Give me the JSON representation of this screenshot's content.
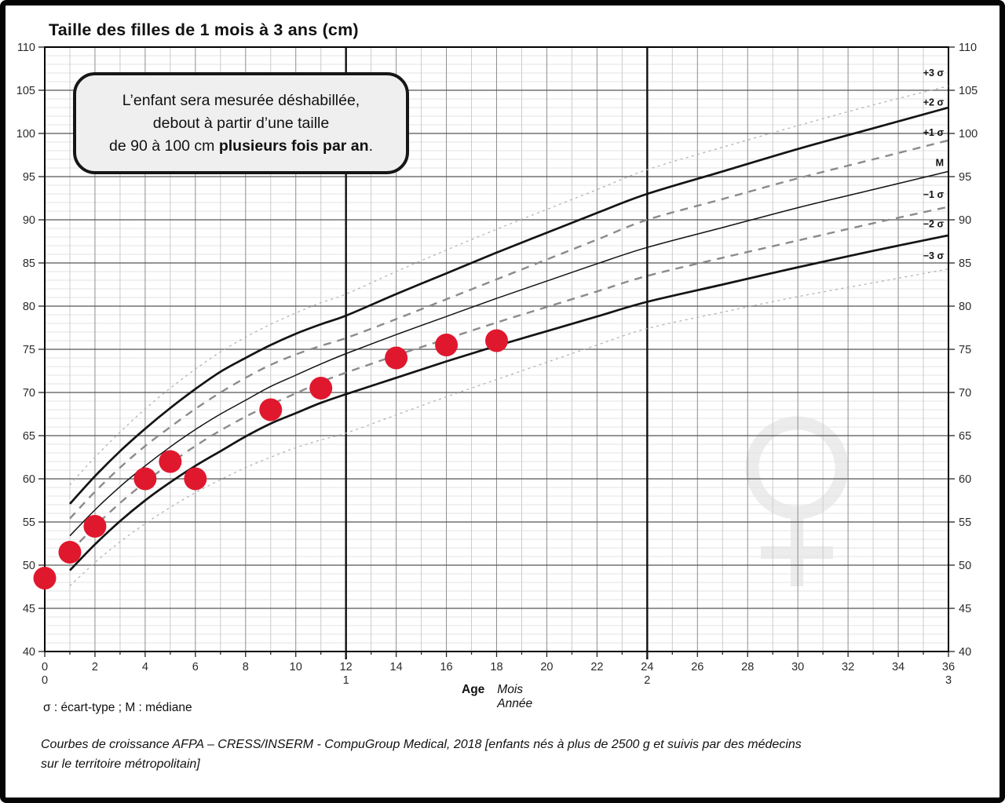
{
  "page": {
    "title": "Taille des filles de 1 mois à 3 ans (cm)",
    "callout": {
      "line1": "L’enfant sera mesurée déshabillée,",
      "line2": "debout à partir d’une taille",
      "line3_normal": "de 90 à 100 cm ",
      "line3_bold": "plusieurs fois par an",
      "line3_end": "."
    },
    "legend_note": "σ : écart-type ; M : médiane",
    "age_label": "Age",
    "age_unit_months": "Mois",
    "age_unit_years": "Année",
    "source_line1": "Courbes de croissance  AFPA – CRESS/INSERM - CompuGroup Medical, 2018 [enfants nés à plus de 2500 g et suivis par des médecins",
    "source_line2": "sur le territoire métropolitain]"
  },
  "chart_data": {
    "type": "line",
    "title": "Taille des filles de 1 mois à 3 ans (cm)",
    "xlabel": "Age (Mois / Année)",
    "ylabel": "Taille (cm)",
    "xlim": [
      0,
      36
    ],
    "ylim": [
      40,
      110
    ],
    "grid": {
      "x_minor_every": 1,
      "x_major_every": 2,
      "y_minor_every": 1,
      "y_major_every": 5,
      "year_lines_at_months": [
        12,
        24
      ]
    },
    "x_labeled_ticks": [
      0,
      2,
      4,
      6,
      8,
      10,
      12,
      14,
      16,
      18,
      20,
      22,
      24,
      26,
      28,
      30,
      32,
      34,
      36
    ],
    "year_marks": [
      {
        "month": 0,
        "label": "0"
      },
      {
        "month": 12,
        "label": "1"
      },
      {
        "month": 24,
        "label": "2"
      },
      {
        "month": 36,
        "label": "3"
      }
    ],
    "y_labeled_ticks": [
      40,
      45,
      50,
      55,
      60,
      65,
      70,
      75,
      80,
      85,
      90,
      95,
      100,
      105,
      110
    ],
    "legend_position": "curve end labels inside plot, right edge",
    "months": [
      1,
      2,
      3,
      4,
      5,
      6,
      7,
      8,
      9,
      10,
      11,
      12,
      14,
      16,
      18,
      20,
      22,
      24,
      27,
      30,
      33,
      36
    ],
    "series": [
      {
        "name": "+3 σ",
        "style": "dotted-light",
        "label_y": 107.0,
        "values": [
          59.3,
          62.5,
          65.4,
          68.1,
          70.5,
          72.7,
          74.7,
          76.4,
          77.9,
          79.2,
          80.4,
          81.4,
          84.0,
          86.5,
          88.9,
          91.2,
          93.5,
          95.8,
          98.4,
          100.9,
          103.3,
          105.5
        ]
      },
      {
        "name": "+2 σ",
        "style": "solid-thick",
        "label_y": 103.6,
        "values": [
          57.1,
          60.3,
          63.2,
          65.8,
          68.2,
          70.4,
          72.4,
          74.0,
          75.5,
          76.8,
          77.9,
          78.9,
          81.4,
          83.8,
          86.2,
          88.5,
          90.8,
          93.0,
          95.6,
          98.2,
          100.6,
          103.0
        ]
      },
      {
        "name": "+1 σ",
        "style": "dashed",
        "label_y": 100.1,
        "values": [
          55.4,
          58.5,
          61.3,
          63.8,
          66.0,
          68.1,
          70.0,
          71.7,
          73.2,
          74.4,
          75.4,
          76.3,
          78.5,
          80.8,
          83.1,
          85.4,
          87.7,
          90.0,
          92.4,
          94.8,
          97.0,
          99.2
        ]
      },
      {
        "name": "M",
        "style": "solid-thin",
        "label_y": 96.6,
        "values": [
          53.4,
          56.4,
          59.1,
          61.5,
          63.7,
          65.7,
          67.5,
          69.1,
          70.7,
          72.0,
          73.3,
          74.5,
          76.7,
          78.8,
          80.9,
          82.9,
          84.9,
          86.8,
          89.1,
          91.4,
          93.5,
          95.6
        ]
      },
      {
        "name": "−1 σ",
        "style": "dashed",
        "label_y": 92.9,
        "values": [
          51.5,
          54.5,
          57.2,
          59.6,
          61.8,
          63.8,
          65.6,
          67.2,
          68.6,
          69.9,
          71.2,
          72.3,
          74.3,
          76.2,
          78.1,
          79.9,
          81.7,
          83.5,
          85.6,
          87.6,
          89.6,
          91.5
        ]
      },
      {
        "name": "−2 σ",
        "style": "solid-thick",
        "label_y": 89.5,
        "values": [
          49.4,
          52.4,
          55.1,
          57.5,
          59.6,
          61.5,
          63.2,
          64.9,
          66.4,
          67.6,
          68.8,
          69.8,
          71.7,
          73.6,
          75.4,
          77.1,
          78.8,
          80.5,
          82.5,
          84.5,
          86.4,
          88.2
        ]
      },
      {
        "name": "−3 σ",
        "style": "dotted-light",
        "label_y": 85.8,
        "values": [
          47.6,
          50.3,
          52.7,
          54.8,
          56.7,
          58.4,
          59.9,
          61.3,
          62.5,
          63.6,
          64.5,
          65.3,
          67.4,
          69.5,
          71.5,
          73.5,
          75.5,
          77.4,
          79.3,
          81.1,
          82.7,
          84.3
        ]
      }
    ],
    "patient_points": {
      "name": "mesures de l'enfant",
      "color": "#e0182e",
      "points": [
        [
          0,
          48.5
        ],
        [
          1,
          51.5
        ],
        [
          2,
          54.5
        ],
        [
          4,
          60
        ],
        [
          5,
          62
        ],
        [
          6,
          60
        ],
        [
          9,
          68
        ],
        [
          11,
          70.5
        ],
        [
          14,
          74
        ],
        [
          16,
          75.5
        ],
        [
          18,
          76
        ]
      ]
    },
    "watermark": "female-symbol",
    "colors": {
      "point_red": "#e0182e",
      "watermark_gray": "#ececec",
      "grid_minor_y": "#e3e3e3",
      "grid_major_y": "#565656",
      "grid_month_odd": "#cbcbcb",
      "grid_month_even": "#8e8e8e",
      "year_line": "#101010",
      "curve_black": "#141414",
      "curve_dashed_gray": "#8b8b8b",
      "curve_dotted_gray": "#b3b3b3",
      "tick_text": "#2b2b2b"
    }
  }
}
